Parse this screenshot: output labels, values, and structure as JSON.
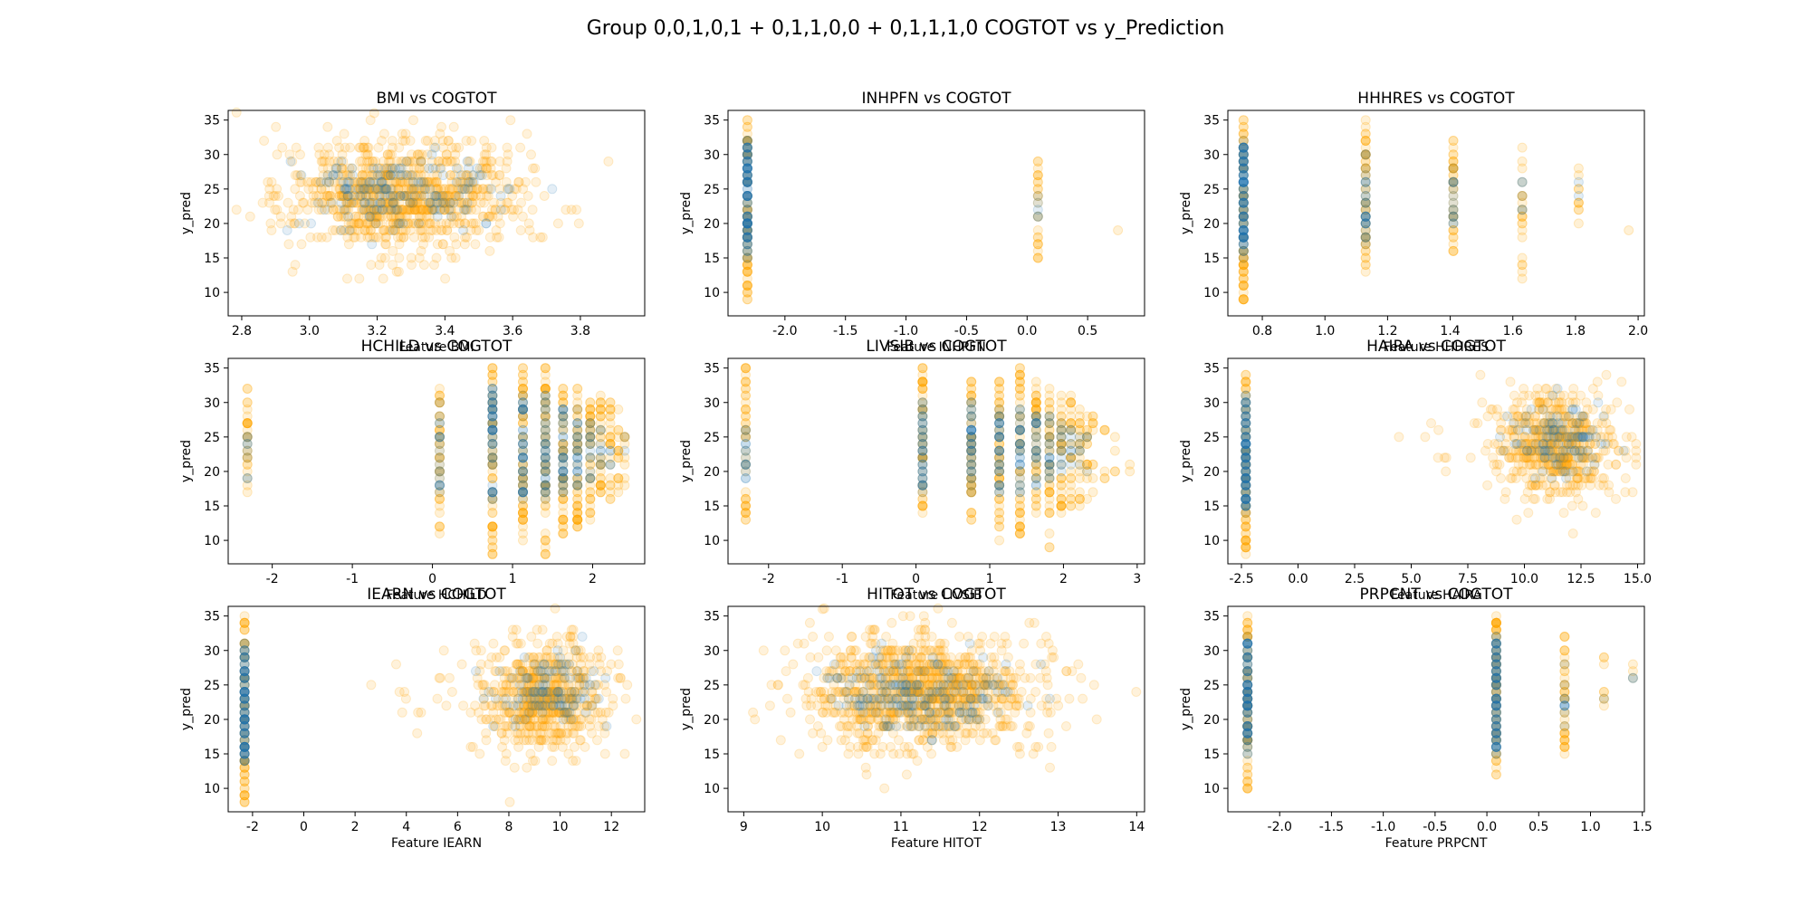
{
  "figure": {
    "title": "Group 0,0,1,0,1 + 0,1,1,0,0 + 0,1,1,1,0 COGTOT vs y_Prediction"
  },
  "chart_data": [
    {
      "type": "scatter",
      "title": "BMI vs COGTOT",
      "xlabel": "Feature BMI",
      "ylabel": "y_pred",
      "xlim": [
        2.76,
        3.99
      ],
      "ylim": [
        6.6,
        36.4
      ],
      "xticks": [
        "2.8",
        "3.0",
        "3.2",
        "3.4",
        "3.6",
        "3.8"
      ],
      "yticks": [
        "10",
        "15",
        "20",
        "25",
        "30",
        "35"
      ],
      "colors": {
        "orange": "#ffa500",
        "blue": "#1f77b4"
      },
      "orange_clusters": [
        {
          "x": 3.28,
          "y": 24,
          "sx": 0.17,
          "sy": 4.2,
          "n": 900
        }
      ],
      "blue_clusters": [
        {
          "x": 3.28,
          "y": 24.5,
          "sx": 0.13,
          "sy": 2.8,
          "n": 170
        }
      ]
    },
    {
      "type": "scatter",
      "title": "INHPFN vs COGTOT",
      "xlabel": "Feature INHPFN",
      "ylabel": "y_pred",
      "xlim": [
        -2.47,
        0.97
      ],
      "ylim": [
        6.6,
        36.4
      ],
      "xticks": [
        "-2.0",
        "-1.5",
        "-1.0",
        "-0.5",
        "0.0",
        "0.5"
      ],
      "yticks": [
        "10",
        "15",
        "20",
        "25",
        "30",
        "35"
      ],
      "colors": {
        "orange": "#ffa500",
        "blue": "#1f77b4"
      },
      "orange_columns": [
        {
          "x": -2.31,
          "ymin": 9,
          "ymax": 35,
          "n": 90
        },
        {
          "x": 0.09,
          "ymin": 15,
          "ymax": 29,
          "n": 25
        },
        {
          "x": 0.75,
          "ymin": 19,
          "ymax": 19,
          "n": 1
        }
      ],
      "blue_columns": [
        {
          "x": -2.31,
          "ymin": 15,
          "ymax": 32,
          "n": 110
        },
        {
          "x": 0.09,
          "ymin": 18,
          "ymax": 24,
          "n": 5
        }
      ]
    },
    {
      "type": "scatter",
      "title": "HHHRES vs COGTOT",
      "xlabel": "Feature HHHRES",
      "ylabel": "y_pred",
      "xlim": [
        0.69,
        2.02
      ],
      "ylim": [
        6.6,
        36.4
      ],
      "xticks": [
        "0.8",
        "1.0",
        "1.2",
        "1.4",
        "1.6",
        "1.8",
        "2.0"
      ],
      "yticks": [
        "10",
        "15",
        "20",
        "25",
        "30",
        "35"
      ],
      "colors": {
        "orange": "#ffa500",
        "blue": "#1f77b4"
      },
      "orange_columns": [
        {
          "x": 0.74,
          "ymin": 8,
          "ymax": 35,
          "n": 90
        },
        {
          "x": 1.13,
          "ymin": 13,
          "ymax": 35,
          "n": 55
        },
        {
          "x": 1.41,
          "ymin": 16,
          "ymax": 33,
          "n": 40
        },
        {
          "x": 1.63,
          "ymin": 12,
          "ymax": 31,
          "n": 22
        },
        {
          "x": 1.81,
          "ymin": 20,
          "ymax": 28,
          "n": 10
        },
        {
          "x": 1.97,
          "ymin": 19,
          "ymax": 19,
          "n": 1
        }
      ],
      "blue_columns": [
        {
          "x": 0.74,
          "ymin": 15,
          "ymax": 32,
          "n": 110
        },
        {
          "x": 1.13,
          "ymin": 17,
          "ymax": 30,
          "n": 30
        },
        {
          "x": 1.41,
          "ymin": 19,
          "ymax": 28,
          "n": 15
        },
        {
          "x": 1.63,
          "ymin": 22,
          "ymax": 27,
          "n": 5
        },
        {
          "x": 1.81,
          "ymin": 23,
          "ymax": 26,
          "n": 2
        }
      ]
    },
    {
      "type": "scatter",
      "title": "HCHILD vs COGTOT",
      "xlabel": "Feature HCHILD",
      "ylabel": "y_pred",
      "xlim": [
        -2.55,
        2.65
      ],
      "ylim": [
        6.6,
        36.4
      ],
      "xticks": [
        "-2",
        "-1",
        "0",
        "1",
        "2"
      ],
      "yticks": [
        "10",
        "15",
        "20",
        "25",
        "30",
        "35"
      ],
      "colors": {
        "orange": "#ffa500",
        "blue": "#1f77b4"
      },
      "orange_columns": [
        {
          "x": -2.31,
          "ymin": 15,
          "ymax": 33,
          "n": 30
        },
        {
          "x": 0.09,
          "ymin": 11,
          "ymax": 32,
          "n": 45
        },
        {
          "x": 0.75,
          "ymin": 8,
          "ymax": 35,
          "n": 70
        },
        {
          "x": 1.13,
          "ymin": 10,
          "ymax": 35,
          "n": 70
        },
        {
          "x": 1.41,
          "ymin": 8,
          "ymax": 35,
          "n": 70
        },
        {
          "x": 1.63,
          "ymin": 10,
          "ymax": 33,
          "n": 60
        },
        {
          "x": 1.81,
          "ymin": 12,
          "ymax": 33,
          "n": 55
        },
        {
          "x": 1.97,
          "ymin": 13,
          "ymax": 31,
          "n": 45
        },
        {
          "x": 2.1,
          "ymin": 15,
          "ymax": 31,
          "n": 35
        },
        {
          "x": 2.22,
          "ymin": 16,
          "ymax": 30,
          "n": 25
        },
        {
          "x": 2.32,
          "ymin": 17,
          "ymax": 29,
          "n": 15
        },
        {
          "x": 2.4,
          "ymin": 18,
          "ymax": 26,
          "n": 8
        }
      ],
      "blue_columns": [
        {
          "x": -2.31,
          "ymin": 19,
          "ymax": 26,
          "n": 8
        },
        {
          "x": 0.09,
          "ymin": 17,
          "ymax": 30,
          "n": 20
        },
        {
          "x": 0.75,
          "ymin": 16,
          "ymax": 32,
          "n": 55
        },
        {
          "x": 1.13,
          "ymin": 16,
          "ymax": 31,
          "n": 45
        },
        {
          "x": 1.41,
          "ymin": 16,
          "ymax": 31,
          "n": 40
        },
        {
          "x": 1.63,
          "ymin": 17,
          "ymax": 30,
          "n": 35
        },
        {
          "x": 1.81,
          "ymin": 18,
          "ymax": 29,
          "n": 25
        },
        {
          "x": 1.97,
          "ymin": 18,
          "ymax": 28,
          "n": 15
        },
        {
          "x": 2.1,
          "ymin": 19,
          "ymax": 27,
          "n": 8
        },
        {
          "x": 2.22,
          "ymin": 20,
          "ymax": 26,
          "n": 4
        },
        {
          "x": 2.4,
          "ymin": 21,
          "ymax": 25,
          "n": 2
        }
      ]
    },
    {
      "type": "scatter",
      "title": "LIVSIB vs COGTOT",
      "xlabel": "Feature LIVSIB",
      "ylabel": "y_pred",
      "xlim": [
        -2.55,
        3.1
      ],
      "ylim": [
        6.6,
        36.4
      ],
      "xticks": [
        "-2",
        "-1",
        "0",
        "1",
        "2",
        "3"
      ],
      "yticks": [
        "10",
        "15",
        "20",
        "25",
        "30",
        "35"
      ],
      "colors": {
        "orange": "#ffa500",
        "blue": "#1f77b4"
      },
      "orange_columns": [
        {
          "x": -2.31,
          "ymin": 12,
          "ymax": 35,
          "n": 45
        },
        {
          "x": 0.09,
          "ymin": 14,
          "ymax": 35,
          "n": 60
        },
        {
          "x": 0.75,
          "ymin": 13,
          "ymax": 33,
          "n": 60
        },
        {
          "x": 1.13,
          "ymin": 10,
          "ymax": 33,
          "n": 60
        },
        {
          "x": 1.41,
          "ymin": 10,
          "ymax": 35,
          "n": 55
        },
        {
          "x": 1.63,
          "ymin": 12,
          "ymax": 33,
          "n": 50
        },
        {
          "x": 1.81,
          "ymin": 8,
          "ymax": 32,
          "n": 45
        },
        {
          "x": 1.97,
          "ymin": 13,
          "ymax": 31,
          "n": 40
        },
        {
          "x": 2.1,
          "ymin": 14,
          "ymax": 31,
          "n": 30
        },
        {
          "x": 2.22,
          "ymin": 15,
          "ymax": 30,
          "n": 22
        },
        {
          "x": 2.32,
          "ymin": 16,
          "ymax": 29,
          "n": 15
        },
        {
          "x": 2.4,
          "ymin": 17,
          "ymax": 28,
          "n": 10
        },
        {
          "x": 2.56,
          "ymin": 18,
          "ymax": 28,
          "n": 6
        },
        {
          "x": 2.7,
          "ymin": 19,
          "ymax": 27,
          "n": 4
        },
        {
          "x": 2.9,
          "ymin": 19,
          "ymax": 23,
          "n": 2
        }
      ],
      "blue_columns": [
        {
          "x": -2.31,
          "ymin": 18,
          "ymax": 28,
          "n": 15
        },
        {
          "x": 0.09,
          "ymin": 17,
          "ymax": 30,
          "n": 40
        },
        {
          "x": 0.75,
          "ymin": 17,
          "ymax": 30,
          "n": 40
        },
        {
          "x": 1.13,
          "ymin": 17,
          "ymax": 30,
          "n": 35
        },
        {
          "x": 1.41,
          "ymin": 17,
          "ymax": 29,
          "n": 30
        },
        {
          "x": 1.63,
          "ymin": 17,
          "ymax": 29,
          "n": 25
        },
        {
          "x": 1.81,
          "ymin": 18,
          "ymax": 28,
          "n": 20
        },
        {
          "x": 1.97,
          "ymin": 19,
          "ymax": 27,
          "n": 12
        },
        {
          "x": 2.1,
          "ymin": 19,
          "ymax": 26,
          "n": 8
        },
        {
          "x": 2.22,
          "ymin": 20,
          "ymax": 26,
          "n": 5
        },
        {
          "x": 2.32,
          "ymin": 20,
          "ymax": 25,
          "n": 3
        }
      ]
    },
    {
      "type": "scatter",
      "title": "HAIRA vs COGTOT",
      "xlabel": "Feature HAIRA",
      "ylabel": "y_pred",
      "xlim": [
        -3.1,
        15.3
      ],
      "ylim": [
        6.6,
        36.4
      ],
      "xticks": [
        "-2.5",
        "0.0",
        "2.5",
        "5.0",
        "7.5",
        "10.0",
        "12.5",
        "15.0"
      ],
      "yticks": [
        "10",
        "15",
        "20",
        "25",
        "30",
        "35"
      ],
      "colors": {
        "orange": "#ffa500",
        "blue": "#1f77b4"
      },
      "orange_columns": [
        {
          "x": -2.31,
          "ymin": 8,
          "ymax": 34,
          "n": 90
        }
      ],
      "blue_columns": [
        {
          "x": -2.31,
          "ymin": 14,
          "ymax": 31,
          "n": 110
        }
      ],
      "orange_clusters": [
        {
          "x": 11.2,
          "y": 24,
          "sx": 1.4,
          "sy": 3.8,
          "n": 550
        },
        {
          "x": 6,
          "y": 24,
          "sx": 0.9,
          "sy": 2,
          "n": 8
        }
      ],
      "blue_clusters": [
        {
          "x": 11.5,
          "y": 24.5,
          "sx": 1.1,
          "sy": 2.6,
          "n": 110
        }
      ]
    },
    {
      "type": "scatter",
      "title": "IEARN vs COGTOT",
      "xlabel": "Feature IEARN",
      "ylabel": "y_pred",
      "xlim": [
        -2.95,
        13.3
      ],
      "ylim": [
        6.6,
        36.4
      ],
      "xticks": [
        "-2",
        "0",
        "2",
        "4",
        "6",
        "8",
        "10",
        "12"
      ],
      "yticks": [
        "10",
        "15",
        "20",
        "25",
        "30",
        "35"
      ],
      "colors": {
        "orange": "#ffa500",
        "blue": "#1f77b4"
      },
      "orange_columns": [
        {
          "x": -2.31,
          "ymin": 8,
          "ymax": 35,
          "n": 90
        }
      ],
      "blue_columns": [
        {
          "x": -2.31,
          "ymin": 14,
          "ymax": 31,
          "n": 110
        }
      ],
      "orange_clusters": [
        {
          "x": 9.4,
          "y": 23.5,
          "sx": 1.3,
          "sy": 4,
          "n": 600
        },
        {
          "x": 5,
          "y": 23,
          "sx": 1,
          "sy": 3,
          "n": 15
        }
      ],
      "blue_clusters": [
        {
          "x": 9.6,
          "y": 24,
          "sx": 1,
          "sy": 2.6,
          "n": 110
        }
      ]
    },
    {
      "type": "scatter",
      "title": "HITOT vs COGTOT",
      "xlabel": "Feature HITOT",
      "ylabel": "y_pred",
      "xlim": [
        8.8,
        14.1
      ],
      "ylim": [
        6.6,
        36.4
      ],
      "xticks": [
        "9",
        "10",
        "11",
        "12",
        "13",
        "14"
      ],
      "yticks": [
        "10",
        "15",
        "20",
        "25",
        "30",
        "35"
      ],
      "colors": {
        "orange": "#ffa500",
        "blue": "#1f77b4"
      },
      "orange_clusters": [
        {
          "x": 11.3,
          "y": 24,
          "sx": 0.75,
          "sy": 4.3,
          "n": 1000
        }
      ],
      "blue_clusters": [
        {
          "x": 11.2,
          "y": 23.5,
          "sx": 0.6,
          "sy": 3,
          "n": 200
        }
      ]
    },
    {
      "type": "scatter",
      "title": "PRPCNT vs COGTOT",
      "xlabel": "Feature PRPCNT",
      "ylabel": "y_pred",
      "xlim": [
        -2.5,
        1.52
      ],
      "ylim": [
        6.6,
        36.4
      ],
      "xticks": [
        "-2.0",
        "-1.5",
        "-1.0",
        "-0.5",
        "0.0",
        "0.5",
        "1.0",
        "1.5"
      ],
      "yticks": [
        "10",
        "15",
        "20",
        "25",
        "30",
        "35"
      ],
      "colors": {
        "orange": "#ffa500",
        "blue": "#1f77b4"
      },
      "orange_columns": [
        {
          "x": -2.31,
          "ymin": 9,
          "ymax": 35,
          "n": 90
        },
        {
          "x": 0.09,
          "ymin": 12,
          "ymax": 35,
          "n": 90
        },
        {
          "x": 0.75,
          "ymin": 15,
          "ymax": 32,
          "n": 40
        },
        {
          "x": 1.13,
          "ymin": 22,
          "ymax": 30,
          "n": 8
        },
        {
          "x": 1.41,
          "ymin": 26,
          "ymax": 28,
          "n": 3
        }
      ],
      "blue_columns": [
        {
          "x": -2.31,
          "ymin": 15,
          "ymax": 32,
          "n": 100
        },
        {
          "x": 0.09,
          "ymin": 15,
          "ymax": 32,
          "n": 100
        },
        {
          "x": 0.75,
          "ymin": 18,
          "ymax": 29,
          "n": 10
        },
        {
          "x": 1.13,
          "ymin": 23,
          "ymax": 23,
          "n": 1
        },
        {
          "x": 1.41,
          "ymin": 26,
          "ymax": 27,
          "n": 2
        }
      ]
    }
  ]
}
